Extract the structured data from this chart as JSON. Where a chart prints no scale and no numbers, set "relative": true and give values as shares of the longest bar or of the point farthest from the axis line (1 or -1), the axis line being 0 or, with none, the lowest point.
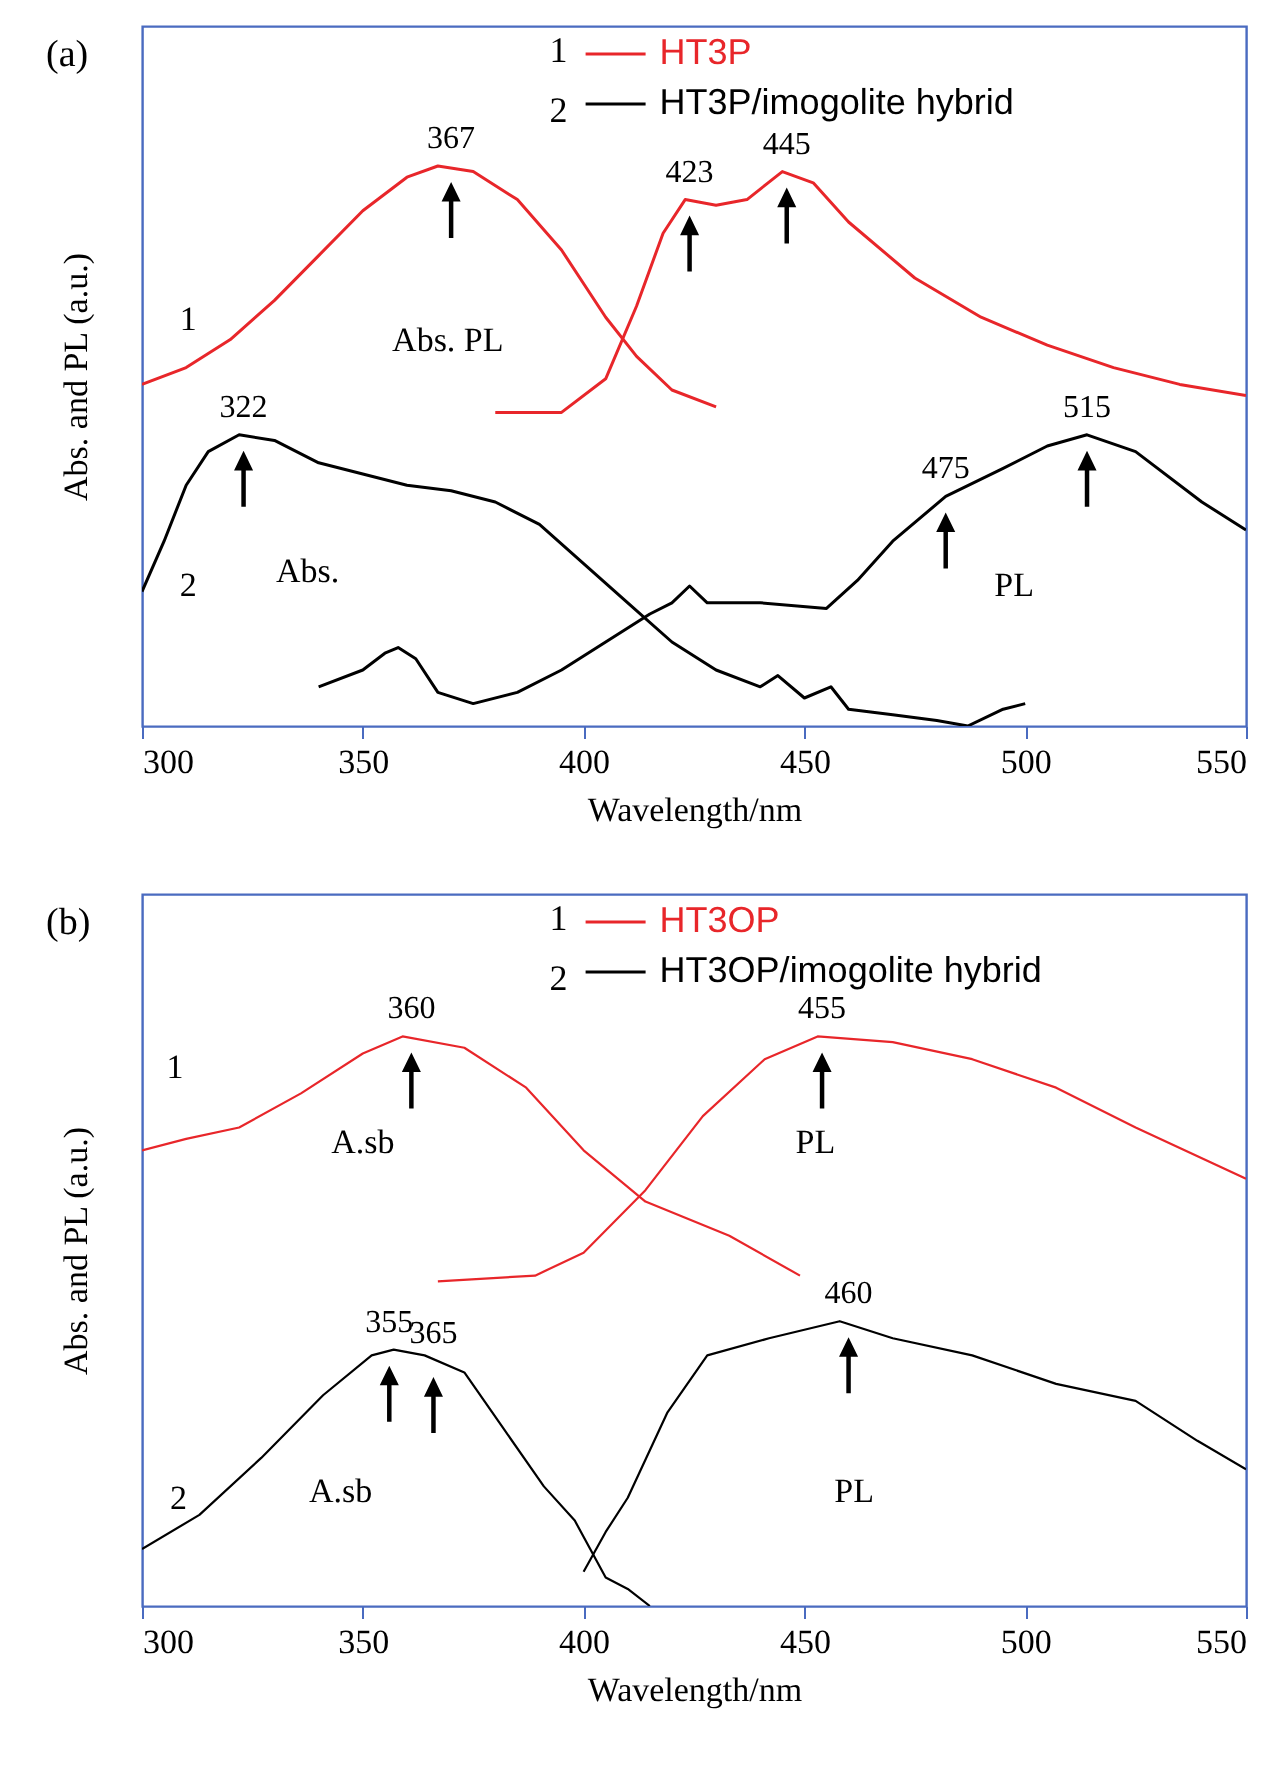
{
  "chart_data": [
    {
      "type": "line",
      "title": "(a)",
      "xlabel": "Wavelength/nm",
      "ylabel": "Abs. and PL (a.u.)",
      "relative": true,
      "xlim": [
        300,
        550
      ],
      "xticks": [
        300,
        350,
        400,
        450,
        500,
        550
      ],
      "legend": "top",
      "series": [
        {
          "name": "HT3P",
          "color": "#e8262a",
          "x": [
            300,
            310,
            320,
            330,
            340,
            350,
            360,
            367,
            375,
            385,
            395,
            405,
            412,
            420,
            430
          ],
          "values": [
            0.61,
            0.64,
            0.69,
            0.76,
            0.84,
            0.92,
            0.98,
            1,
            0.99,
            0.94,
            0.85,
            0.73,
            0.66,
            0.6,
            0.57
          ]
        },
        {
          "color": "#e8262a",
          "x": [
            380,
            395,
            405,
            412,
            418,
            423,
            430,
            437,
            445,
            452,
            460,
            475,
            490,
            505,
            520,
            535,
            550
          ],
          "values": [
            0.56,
            0.56,
            0.62,
            0.75,
            0.88,
            0.94,
            0.93,
            0.94,
            0.99,
            0.97,
            0.9,
            0.8,
            0.73,
            0.68,
            0.64,
            0.61,
            0.59
          ]
        },
        {
          "name": "HT3P/imogolite hybrid",
          "color": "#000000",
          "x": [
            300,
            305,
            310,
            315,
            322,
            330,
            340,
            350,
            360,
            370,
            380,
            390,
            400,
            410,
            420,
            430,
            440,
            444,
            450,
            456,
            460,
            470,
            480,
            487,
            495,
            500
          ],
          "values": [
            0.24,
            0.33,
            0.43,
            0.49,
            0.52,
            0.51,
            0.47,
            0.45,
            0.43,
            0.42,
            0.4,
            0.36,
            0.29,
            0.22,
            0.15,
            0.1,
            0.07,
            0.09,
            0.05,
            0.07,
            0.03,
            0.02,
            0.01,
            0,
            0.03,
            0.04
          ]
        },
        {
          "color": "#000000",
          "x": [
            340,
            350,
            355,
            358,
            362,
            367,
            375,
            385,
            395,
            405,
            415,
            420,
            424,
            428,
            440,
            455,
            462,
            470,
            482,
            495,
            505,
            514,
            525,
            540,
            550
          ],
          "values": [
            0.07,
            0.1,
            0.13,
            0.14,
            0.12,
            0.06,
            0.04,
            0.06,
            0.1,
            0.15,
            0.2,
            0.22,
            0.25,
            0.22,
            0.22,
            0.21,
            0.26,
            0.33,
            0.41,
            0.46,
            0.5,
            0.52,
            0.49,
            0.4,
            0.35
          ]
        }
      ],
      "annotations": [
        "1",
        "2",
        {
          "text": "367",
          "x": 370,
          "y": 1
        },
        {
          "text": "423",
          "x": 424,
          "y": 0.94
        },
        {
          "text": "445",
          "x": 446,
          "y": 0.99
        },
        {
          "text": "322",
          "x": 323,
          "y": 0.52
        },
        {
          "text": "475",
          "x": 482,
          "y": 0.41
        },
        {
          "text": "515",
          "x": 514,
          "y": 0.52
        },
        "1",
        "2",
        "Abs. PL",
        "Abs.",
        "PL"
      ]
    },
    {
      "type": "line",
      "title": "(b)",
      "xlabel": "Wavelength/nm",
      "ylabel": "Abs. and PL (a.u.)",
      "relative": true,
      "xlim": [
        300,
        550
      ],
      "xticks": [
        300,
        350,
        400,
        450,
        500,
        550
      ],
      "legend": "top",
      "series": [
        {
          "name": "HT3OP",
          "color": "#e8262a",
          "x": [
            300,
            310,
            322,
            336,
            350,
            359,
            373,
            387,
            400,
            414,
            433,
            449
          ],
          "values": [
            0.8,
            0.82,
            0.84,
            0.9,
            0.97,
            1,
            0.98,
            0.91,
            0.8,
            0.71,
            0.65,
            0.58
          ]
        },
        {
          "color": "#e8262a",
          "x": [
            367,
            389,
            400,
            414,
            427,
            441,
            453,
            470,
            488,
            507,
            525,
            550
          ],
          "values": [
            0.57,
            0.58,
            0.62,
            0.73,
            0.86,
            0.96,
            1,
            0.99,
            0.96,
            0.91,
            0.84,
            0.75
          ]
        },
        {
          "name": "HT3OP/imogolite hybrid",
          "color": "#000000",
          "x": [
            300,
            313,
            327,
            341,
            352,
            357,
            364,
            373,
            382,
            391,
            398,
            405,
            410,
            415
          ],
          "values": [
            0.1,
            0.16,
            0.26,
            0.37,
            0.44,
            0.45,
            0.44,
            0.41,
            0.31,
            0.21,
            0.15,
            0.05,
            0.03,
            0
          ]
        },
        {
          "color": "#000000",
          "x": [
            400,
            405,
            410,
            419,
            428,
            442,
            458,
            470,
            488,
            507,
            525,
            539,
            550
          ],
          "values": [
            0.06,
            0.13,
            0.19,
            0.34,
            0.44,
            0.47,
            0.5,
            0.47,
            0.44,
            0.39,
            0.36,
            0.29,
            0.24
          ]
        }
      ],
      "annotations": [
        "1",
        "2",
        {
          "text": "360",
          "x": 361,
          "y": 1
        },
        {
          "text": "455",
          "x": 454,
          "y": 1
        },
        {
          "text": "355",
          "x": 356,
          "y": 0.45
        },
        {
          "text": "365",
          "x": 366,
          "y": 0.43
        },
        {
          "text": "460",
          "x": 460,
          "y": 0.5
        },
        "1",
        "2",
        "A.sb",
        "PL",
        "A.sb",
        "PL"
      ]
    }
  ]
}
